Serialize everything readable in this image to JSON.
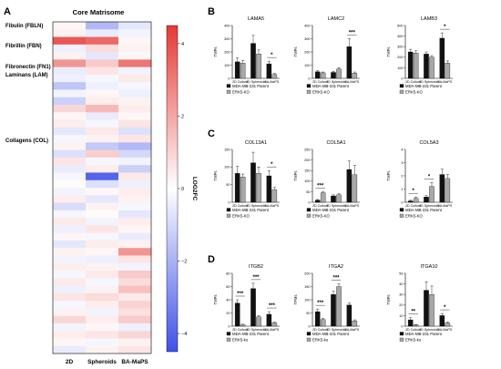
{
  "figure": {
    "panel_letters": [
      "A",
      "B",
      "C",
      "D"
    ]
  },
  "heatmap": {
    "title": "Core Matrisome",
    "x_categories": [
      "2D",
      "Spheroids",
      "BA-MaPS"
    ],
    "row_groups": [
      {
        "label": "Fibulin (FBLN)"
      },
      {
        "label": "Fibrillin (FBN)"
      },
      {
        "label": "Fibronectin (FN1)"
      },
      {
        "label": "Laminans (LAM)"
      },
      {
        "label": "Collagens (COL)"
      }
    ],
    "colorbar": {
      "label": "LOG2FC",
      "ticks": [
        "4",
        "2",
        "0",
        "−2",
        "−4"
      ],
      "range": [
        -4.5,
        4.5
      ],
      "colors": {
        "high": "#e53935",
        "mid": "#ffffff",
        "low": "#3f51e8"
      }
    }
  },
  "legend_labels": {
    "upper": {
      "parent": "MDA-MB-231 Parent",
      "ko": "ERK5-KO"
    },
    "lower": {
      "parent": "MDA-MB-231 Parent",
      "ko": "ERK5-ko"
    }
  },
  "bar_colors": {
    "parent": "#111111",
    "ko": "#a8a8a8"
  },
  "chart_data": [
    {
      "type": "heatmap",
      "title": "Core Matrisome",
      "x": [
        "2D",
        "Spheroids",
        "BA-MaPS"
      ],
      "values": [
        [
          0.2,
          -1.8,
          -0.6
        ],
        [
          0.3,
          -0.5,
          -0.3
        ],
        [
          3.8,
          3.4,
          0.2
        ],
        [
          -0.4,
          0.8,
          0.3
        ],
        [
          0.3,
          -0.6,
          0.2
        ],
        [
          2.4,
          1.2,
          3.1
        ],
        [
          -0.5,
          0.6,
          -0.3
        ],
        [
          -0.4,
          -0.2,
          0.5
        ],
        [
          -1.5,
          -0.4,
          -0.2
        ],
        [
          -0.3,
          0.2,
          -0.4
        ],
        [
          -1.2,
          0.4,
          0.3
        ],
        [
          0.9,
          1.6,
          0.4
        ],
        [
          0.2,
          -0.5,
          0.2
        ],
        [
          0.4,
          -0.2,
          0.6
        ],
        [
          -0.6,
          0.5,
          -0.8
        ],
        [
          -0.2,
          0.3,
          0.6
        ],
        [
          0.3,
          -1.4,
          -1.8
        ],
        [
          -0.8,
          1.1,
          -1.0
        ],
        [
          0.6,
          -0.2,
          -0.3
        ],
        [
          -0.5,
          0.4,
          -1.2
        ],
        [
          -0.2,
          -4.0,
          0.5
        ],
        [
          0.1,
          -0.8,
          -0.4
        ],
        [
          -0.3,
          0.2,
          0.4
        ],
        [
          0.4,
          -0.6,
          0.3
        ],
        [
          -0.9,
          0.3,
          -0.2
        ],
        [
          -0.2,
          0.1,
          -0.6
        ],
        [
          0.5,
          -0.3,
          0.4
        ],
        [
          -0.4,
          0.6,
          0.2
        ],
        [
          0.2,
          -0.2,
          -0.5
        ],
        [
          -0.6,
          0.4,
          0.3
        ],
        [
          0.3,
          0.2,
          2.4
        ],
        [
          -0.3,
          -0.4,
          0.6
        ],
        [
          0.4,
          0.3,
          -0.3
        ],
        [
          -0.2,
          0.5,
          1.2
        ],
        [
          0.5,
          -0.2,
          0.8
        ],
        [
          -0.4,
          0.3,
          1.4
        ],
        [
          0.6,
          0.8,
          0.5
        ],
        [
          -0.2,
          0.4,
          1.0
        ],
        [
          0.3,
          -0.3,
          0.7
        ],
        [
          0.9,
          0.4,
          1.2
        ],
        [
          -0.3,
          0.2,
          -0.4
        ],
        [
          0.4,
          0.6,
          0.9
        ],
        [
          0.2,
          -0.2,
          0.3
        ],
        [
          -0.5,
          0.3,
          0.6
        ]
      ],
      "colorbar_label": "LOG2FC",
      "colorbar_range": [
        -4.5,
        4.5
      ]
    },
    {
      "type": "bar",
      "title": "LAMA5",
      "ylabel": "TMPs",
      "categories": [
        "2D Culture",
        "3D Spheroids",
        "BA-MaPS"
      ],
      "ylim": [
        0,
        400
      ],
      "yticks": [
        0,
        100,
        200,
        300,
        400
      ],
      "series": [
        {
          "name": "MDA-MB-231 Parent",
          "values": [
            125,
            265,
            110
          ],
          "errors": [
            30,
            60,
            20
          ]
        },
        {
          "name": "ERK5-KO",
          "values": [
            115,
            185,
            30
          ],
          "errors": [
            20,
            30,
            8
          ]
        }
      ],
      "significance": [
        {
          "category": "BA-MaPS",
          "label": "*"
        }
      ]
    },
    {
      "type": "bar",
      "title": "LAMC2",
      "ylabel": "TMPs",
      "categories": [
        "2D Culture",
        "3D Spheroids",
        "BA-MaPS"
      ],
      "ylim": [
        0,
        400
      ],
      "yticks": [
        0,
        100,
        200,
        300,
        400
      ],
      "series": [
        {
          "name": "MDA-MB-231 Parent",
          "values": [
            50,
            45,
            240
          ],
          "errors": [
            8,
            8,
            60
          ]
        },
        {
          "name": "ERK5-KO",
          "values": [
            42,
            70,
            40
          ],
          "errors": [
            6,
            10,
            8
          ]
        }
      ],
      "significance": [
        {
          "category": "BA-MaPS",
          "label": "***"
        }
      ]
    },
    {
      "type": "bar",
      "title": "LAMB3",
      "ylabel": "TMPs",
      "categories": [
        "2D Culture",
        "3D Spheroids",
        "BA-MaPS"
      ],
      "ylim": [
        0,
        500
      ],
      "yticks": [
        0,
        100,
        200,
        300,
        400,
        500
      ],
      "series": [
        {
          "name": "MDA-MB-231 Parent",
          "values": [
            250,
            230,
            380
          ],
          "errors": [
            25,
            20,
            50
          ]
        },
        {
          "name": "ERK5-KO",
          "values": [
            240,
            200,
            145
          ],
          "errors": [
            20,
            15,
            20
          ]
        }
      ],
      "significance": [
        {
          "category": "BA-MaPS",
          "label": "*"
        }
      ]
    },
    {
      "type": "bar",
      "title": "COL13A1",
      "ylabel": "TMPs",
      "categories": [
        "2D Culture",
        "3D Spheroids",
        "BA-MaPS"
      ],
      "ylim": [
        0,
        150
      ],
      "yticks": [
        0,
        50,
        100,
        150
      ],
      "series": [
        {
          "name": "MDA-MB-231 Parent",
          "values": [
            82,
            112,
            75
          ],
          "errors": [
            20,
            30,
            15
          ]
        },
        {
          "name": "ERK5-KO",
          "values": [
            72,
            82,
            36
          ],
          "errors": [
            8,
            18,
            6
          ]
        }
      ],
      "significance": [
        {
          "category": "BA-MaPS",
          "label": "*"
        }
      ]
    },
    {
      "type": "bar",
      "title": "COL5A1",
      "ylabel": "TMPs",
      "categories": [
        "2D Culture",
        "3D Spheroids",
        "BA-MaPS"
      ],
      "ylim": [
        0,
        250
      ],
      "yticks": [
        0,
        50,
        100,
        150,
        200,
        250
      ],
      "series": [
        {
          "name": "MDA-MB-231 Parent",
          "values": [
            10,
            30,
            155
          ],
          "errors": [
            3,
            5,
            40
          ]
        },
        {
          "name": "ERK5-KO",
          "values": [
            45,
            35,
            130
          ],
          "errors": [
            5,
            5,
            45
          ]
        }
      ],
      "significance": [
        {
          "category": "2D Culture",
          "label": "***"
        }
      ]
    },
    {
      "type": "bar",
      "title": "COL5A3",
      "ylabel": "TMPs",
      "categories": [
        "2D Culture",
        "3D Spheroids",
        "BA-MaPS"
      ],
      "ylim": [
        0,
        4
      ],
      "yticks": [
        0,
        1,
        2,
        3,
        4
      ],
      "series": [
        {
          "name": "MDA-MB-231 Parent",
          "values": [
            0.1,
            0.4,
            2.1
          ],
          "errors": [
            0.05,
            0.1,
            0.4
          ]
        },
        {
          "name": "ERK5-KO",
          "values": [
            0.3,
            1.2,
            1.8
          ],
          "errors": [
            0.1,
            0.3,
            0.3
          ]
        }
      ],
      "significance": [
        {
          "category": "2D Culture",
          "label": "*"
        },
        {
          "category": "3D Spheroids",
          "label": "*"
        }
      ]
    },
    {
      "type": "bar",
      "title": "ITGB2",
      "ylabel": "TMPs",
      "categories": [
        "2D Culture",
        "3D Spheroids",
        "BA-MaPS"
      ],
      "ylim": [
        0,
        80
      ],
      "yticks": [
        0,
        20,
        40,
        60,
        80
      ],
      "series": [
        {
          "name": "MDA-MB-231 Parent",
          "values": [
            35,
            57,
            18
          ],
          "errors": [
            5,
            8,
            4
          ]
        },
        {
          "name": "ERK5-ko",
          "values": [
            2,
            14,
            5
          ],
          "errors": [
            1,
            2,
            1
          ]
        }
      ],
      "significance": [
        {
          "category": "2D Culture",
          "label": "***"
        },
        {
          "category": "3D Spheroids",
          "label": "***"
        },
        {
          "category": "BA-MaPS",
          "label": "***"
        }
      ]
    },
    {
      "type": "bar",
      "title": "ITGA2",
      "ylabel": "TPMs",
      "categories": [
        "2D Culture",
        "3D Spheroids",
        "BA-MaPS"
      ],
      "ylim": [
        0,
        200
      ],
      "yticks": [
        0,
        50,
        100,
        150,
        200
      ],
      "series": [
        {
          "name": "MDA-MB-231 Parent",
          "values": [
            55,
            120,
            80
          ],
          "errors": [
            10,
            12,
            8
          ]
        },
        {
          "name": "ERK5-ko",
          "values": [
            25,
            150,
            20
          ],
          "errors": [
            5,
            10,
            4
          ]
        }
      ],
      "significance": [
        {
          "category": "2D Culture",
          "label": "***"
        },
        {
          "category": "3D Spheroids",
          "label": "***"
        }
      ]
    },
    {
      "type": "bar",
      "title": "ITGA10",
      "ylabel": "TMPs",
      "categories": [
        "2D Culture",
        "3D Spheroids",
        "BA-MaPS"
      ],
      "ylim": [
        0,
        50
      ],
      "yticks": [
        0,
        10,
        20,
        30,
        40,
        50
      ],
      "series": [
        {
          "name": "MDA-MB-231 Parent",
          "values": [
            6,
            34,
            10
          ],
          "errors": [
            2,
            8,
            2
          ]
        },
        {
          "name": "ERK5-ko",
          "values": [
            1,
            30,
            3
          ],
          "errors": [
            0.5,
            8,
            1
          ]
        }
      ],
      "significance": [
        {
          "category": "2D Culture",
          "label": "**"
        },
        {
          "category": "BA-MaPS",
          "label": "*"
        }
      ]
    }
  ]
}
